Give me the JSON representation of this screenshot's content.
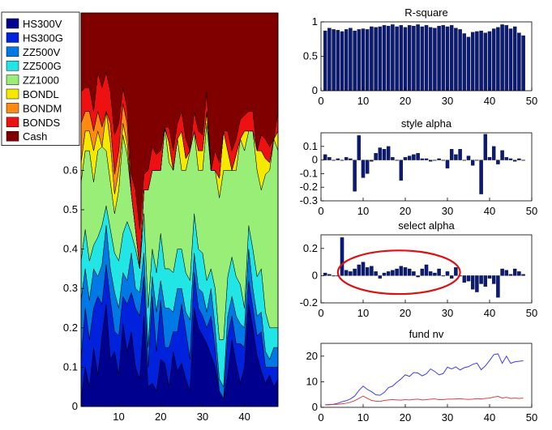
{
  "colors": {
    "HS300V": "#00008f",
    "HS300G": "#0022dd",
    "ZZ500V": "#0078e6",
    "ZZ500G": "#22e6e6",
    "ZZ1000": "#99ee77",
    "BONDL": "#f7e800",
    "BONDM": "#ff8a12",
    "BONDS": "#ee1111",
    "Cash": "#800000",
    "bar": "#0a1a78",
    "nv_line1": "#3b3bff",
    "nv_line2": "#e04040",
    "highlight": "#dd1111"
  },
  "chart_data": [
    {
      "type": "area",
      "stacked": true,
      "x": [
        1,
        2,
        3,
        4,
        5,
        6,
        7,
        8,
        9,
        10,
        11,
        12,
        13,
        14,
        15,
        16,
        17,
        18,
        19,
        20,
        21,
        22,
        23,
        24,
        25,
        26,
        27,
        28,
        29,
        30,
        31,
        32,
        33,
        34,
        35,
        36,
        37,
        38,
        39,
        40,
        41,
        42,
        43,
        44,
        45,
        46,
        47,
        48
      ],
      "xlim": [
        1,
        48
      ],
      "ylim": [
        0,
        1
      ],
      "xticks": [
        10,
        20,
        30,
        40
      ],
      "yticks": [
        0,
        0.1,
        0.2,
        0.3,
        0.4,
        0.5,
        0.6
      ],
      "legend": "top-left",
      "series": [
        {
          "name": "HS300V",
          "values": [
            0.02,
            0.1,
            0.05,
            0.15,
            0.08,
            0.18,
            0.26,
            0.12,
            0.14,
            0.08,
            0.21,
            0.14,
            0.19,
            0.1,
            0.07,
            0.23,
            0.05,
            0.06,
            0.04,
            0.12,
            0.11,
            0.05,
            0.14,
            0.09,
            0.11,
            0.07,
            0.04,
            0.25,
            0.2,
            0.18,
            0.16,
            0.13,
            0.1,
            0.04,
            0.02,
            0.08,
            0.17,
            0.11,
            0.06,
            0.1,
            0.26,
            0.2,
            0.13,
            0.09,
            0.06,
            0.08,
            0.05,
            0.07
          ]
        },
        {
          "name": "HS300G",
          "values": [
            0.1,
            0.15,
            0.12,
            0.1,
            0.2,
            0.08,
            0.1,
            0.15,
            0.05,
            0.1,
            0.07,
            0.12,
            0.1,
            0.15,
            0.16,
            0.1,
            0.05,
            0.22,
            0.1,
            0.15,
            0.04,
            0.1,
            0.05,
            0.1,
            0.15,
            0.12,
            0.08,
            0.09,
            0.05,
            0.05,
            0.04,
            0.1,
            0.05,
            0.0,
            0.0,
            0.1,
            0.06,
            0.05,
            0.1,
            0.05,
            0.06,
            0.05,
            0.05,
            0.1,
            0.04,
            0.02,
            0.05,
            0.03
          ]
        },
        {
          "name": "ZZ500V",
          "values": [
            0.15,
            0.1,
            0.1,
            0.1,
            0.05,
            0.1,
            0.1,
            0.08,
            0.1,
            0.07,
            0.06,
            0.06,
            0.1,
            0.05,
            0.06,
            0.06,
            0.05,
            0.05,
            0.1,
            0.05,
            0.1,
            0.1,
            0.05,
            0.11,
            0.04,
            0.05,
            0.1,
            0.05,
            0.05,
            0.06,
            0.04,
            0.07,
            0.05,
            0.03,
            0.03,
            0.05,
            0.05,
            0.07,
            0.05,
            0.05,
            0.08,
            0.05,
            0.05,
            0.05,
            0.04,
            0.02,
            0.05,
            0.05
          ]
        },
        {
          "name": "ZZ500G",
          "values": [
            0.1,
            0.1,
            0.1,
            0.06,
            0.1,
            0.1,
            0.05,
            0.1,
            0.1,
            0.12,
            0.1,
            0.15,
            0.05,
            0.1,
            0.06,
            0.1,
            0.1,
            0.07,
            0.1,
            0.12,
            0.1,
            0.1,
            0.1,
            0.1,
            0.1,
            0.1,
            0.1,
            0.1,
            0.1,
            0.1,
            0.08,
            0.05,
            0.1,
            0.1,
            0.12,
            0.1,
            0.1,
            0.1,
            0.1,
            0.05,
            0.06,
            0.1,
            0.1,
            0.11,
            0.1,
            0.08,
            0.05,
            0.05
          ]
        },
        {
          "name": "ZZ1000",
          "values": [
            0.2,
            0.2,
            0.28,
            0.16,
            0.22,
            0.2,
            0.14,
            0.12,
            0.1,
            0.18,
            0.25,
            0.17,
            0.1,
            0.05,
            0.0,
            0.06,
            0.3,
            0.2,
            0.26,
            0.16,
            0.36,
            0.27,
            0.26,
            0.28,
            0.2,
            0.26,
            0.33,
            0.21,
            0.2,
            0.21,
            0.4,
            0.25,
            0.3,
            0.36,
            0.43,
            0.27,
            0.22,
            0.27,
            0.37,
            0.4,
            0.24,
            0.3,
            0.27,
            0.2,
            0.35,
            0.4,
            0.48,
            0.45
          ]
        },
        {
          "name": "BONDL",
          "values": [
            0.05,
            0.05,
            0.05,
            0.08,
            0.05,
            0.0,
            0.1,
            0.1,
            0.05,
            0.05,
            0.03,
            0.03,
            0.0,
            0.0,
            0.0,
            0.0,
            0.0,
            0.0,
            0.0,
            0.0,
            0.0,
            0.05,
            0.0,
            0.0,
            0.1,
            0.03,
            0.0,
            0.0,
            0.05,
            0.05,
            0.03,
            0.0,
            0.0,
            0.05,
            0.1,
            0.05,
            0.0,
            0.04,
            0.0,
            0.05,
            0.0,
            0.0,
            0.05,
            0.1,
            0.04,
            0.02,
            0.0,
            0.05
          ]
        },
        {
          "name": "BONDM",
          "values": [
            0.1,
            0.05,
            0.05,
            0.05,
            0.05,
            0.05,
            0.0,
            0.05,
            0.05,
            0.05,
            0.05,
            0.05,
            0.0,
            0.0,
            0.0,
            0.0,
            0.0,
            0.0,
            0.0,
            0.0,
            0.0,
            0.0,
            0.0,
            0.0,
            0.0,
            0.0,
            0.0,
            0.0,
            0.0,
            0.0,
            0.0,
            0.0,
            0.0,
            0.0,
            0.0,
            0.0,
            0.0,
            0.0,
            0.0,
            0.0,
            0.0,
            0.0,
            0.0,
            0.0,
            0.0,
            0.0,
            0.0,
            0.0
          ]
        },
        {
          "name": "BONDS",
          "values": [
            0.08,
            0.06,
            0.06,
            0.05,
            0.1,
            0.1,
            0.1,
            0.08,
            0.1,
            0.07,
            0.04,
            0.04,
            0.05,
            0.1,
            0.1,
            0.04,
            0.05,
            0.06,
            0.04,
            0.05,
            0.0,
            0.04,
            0.05,
            0.04,
            0.05,
            0.05,
            0.0,
            0.05,
            0.05,
            0.04,
            0.05,
            0.0,
            0.05,
            0.04,
            0.0,
            0.05,
            0.05,
            0.04,
            0.05,
            0.04,
            0.05,
            0.05,
            0.0,
            0.04,
            0.05,
            0.04,
            0.0,
            0.05
          ]
        },
        {
          "name": "Cash",
          "values": [
            0.2,
            0.19,
            0.19,
            0.25,
            0.15,
            0.19,
            0.15,
            0.2,
            0.31,
            0.28,
            0.19,
            0.24,
            0.41,
            0.45,
            0.55,
            0.41,
            0.4,
            0.34,
            0.36,
            0.35,
            0.29,
            0.29,
            0.35,
            0.28,
            0.25,
            0.32,
            0.35,
            0.25,
            0.3,
            0.31,
            0.2,
            0.4,
            0.35,
            0.38,
            0.3,
            0.3,
            0.35,
            0.32,
            0.27,
            0.26,
            0.25,
            0.25,
            0.35,
            0.31,
            0.32,
            0.34,
            0.32,
            0.3
          ]
        }
      ]
    },
    {
      "type": "bar",
      "title": "R-square",
      "x": [
        1,
        2,
        3,
        4,
        5,
        6,
        7,
        8,
        9,
        10,
        11,
        12,
        13,
        14,
        15,
        16,
        17,
        18,
        19,
        20,
        21,
        22,
        23,
        24,
        25,
        26,
        27,
        28,
        29,
        30,
        31,
        32,
        33,
        34,
        35,
        36,
        37,
        38,
        39,
        40,
        41,
        42,
        43,
        44,
        45,
        46,
        47,
        48
      ],
      "values": [
        0.87,
        0.91,
        0.89,
        0.88,
        0.86,
        0.89,
        0.91,
        0.87,
        0.89,
        0.9,
        0.89,
        0.93,
        0.92,
        0.93,
        0.95,
        0.94,
        0.96,
        0.93,
        0.95,
        0.92,
        0.95,
        0.94,
        0.96,
        0.93,
        0.95,
        0.92,
        0.91,
        0.94,
        0.95,
        0.93,
        0.95,
        0.91,
        0.89,
        0.83,
        0.78,
        0.85,
        0.86,
        0.87,
        0.84,
        0.86,
        0.9,
        0.92,
        0.96,
        0.95,
        0.9,
        0.93,
        0.84,
        0.8
      ],
      "xlim": [
        0,
        50
      ],
      "ylim": [
        0,
        1
      ],
      "xticks": [
        0,
        10,
        20,
        30,
        40,
        50
      ],
      "yticks": [
        0,
        0.5,
        1
      ]
    },
    {
      "type": "bar",
      "title": "style alpha",
      "x": [
        1,
        2,
        3,
        4,
        5,
        6,
        7,
        8,
        9,
        10,
        11,
        12,
        13,
        14,
        15,
        16,
        17,
        18,
        19,
        20,
        21,
        22,
        23,
        24,
        25,
        26,
        27,
        28,
        29,
        30,
        31,
        32,
        33,
        34,
        35,
        36,
        37,
        38,
        39,
        40,
        41,
        42,
        43,
        44,
        45,
        46,
        47,
        48
      ],
      "values": [
        0.04,
        0.02,
        0.0,
        0.01,
        0.0,
        0.02,
        0.01,
        -0.23,
        0.18,
        -0.13,
        -0.1,
        -0.01,
        0.05,
        0.09,
        0.08,
        0.1,
        0.02,
        0.0,
        -0.15,
        0.02,
        0.03,
        0.04,
        0.05,
        0.01,
        0.01,
        -0.01,
        0.0,
        0.01,
        0.0,
        -0.06,
        0.08,
        0.04,
        0.08,
        0.0,
        0.03,
        -0.04,
        0.0,
        -0.25,
        0.19,
        0.02,
        0.1,
        -0.03,
        0.07,
        0.02,
        0.01,
        -0.01,
        0.01,
        0.0
      ],
      "xlim": [
        0,
        50
      ],
      "ylim": [
        -0.3,
        0.2
      ],
      "xticks": [
        0,
        10,
        20,
        30,
        40,
        50
      ],
      "yticks": [
        -0.3,
        -0.2,
        -0.1,
        0,
        0.1
      ]
    },
    {
      "type": "bar",
      "title": "select alpha",
      "x": [
        1,
        2,
        3,
        4,
        5,
        6,
        7,
        8,
        9,
        10,
        11,
        12,
        13,
        14,
        15,
        16,
        17,
        18,
        19,
        20,
        21,
        22,
        23,
        24,
        25,
        26,
        27,
        28,
        29,
        30,
        31,
        32,
        33,
        34,
        35,
        36,
        37,
        38,
        39,
        40,
        41,
        42,
        43,
        44,
        45,
        46,
        47,
        48
      ],
      "values": [
        0.02,
        0.01,
        0.0,
        0.0,
        0.28,
        0.04,
        0.03,
        0.05,
        0.08,
        0.1,
        0.06,
        0.07,
        0.03,
        -0.02,
        0.02,
        0.03,
        0.04,
        0.05,
        0.07,
        0.06,
        0.05,
        0.03,
        -0.01,
        0.05,
        0.08,
        0.03,
        0.02,
        0.05,
        0.0,
        0.03,
        -0.02,
        0.06,
        0.0,
        -0.05,
        -0.04,
        -0.1,
        -0.12,
        -0.06,
        -0.08,
        -0.02,
        -0.06,
        -0.16,
        0.05,
        0.04,
        0.01,
        0.05,
        0.03,
        0.01
      ],
      "xlim": [
        0,
        50
      ],
      "ylim": [
        -0.2,
        0.3
      ],
      "xticks": [
        0,
        10,
        20,
        30,
        40,
        50
      ],
      "yticks": [
        -0.2,
        0,
        0.2
      ],
      "annotation": {
        "type": "ellipse",
        "x_center": 18.5,
        "y_center": 0.025,
        "x_radius": 14.5,
        "y_radius": 0.16
      }
    },
    {
      "type": "line",
      "title": "fund nv",
      "x": [
        1,
        2,
        3,
        4,
        5,
        6,
        7,
        8,
        9,
        10,
        11,
        12,
        13,
        14,
        15,
        16,
        17,
        18,
        19,
        20,
        21,
        22,
        23,
        24,
        25,
        26,
        27,
        28,
        29,
        30,
        31,
        32,
        33,
        34,
        35,
        36,
        37,
        38,
        39,
        40,
        41,
        42,
        43,
        44,
        45,
        46,
        47,
        48
      ],
      "xlim": [
        0,
        50
      ],
      "ylim": [
        0,
        25
      ],
      "xticks": [
        0,
        10,
        20,
        30,
        40,
        50
      ],
      "yticks": [
        0,
        10,
        20
      ],
      "series": [
        {
          "values": [
            1,
            1.1,
            1.2,
            1.6,
            2.2,
            2.6,
            3.3,
            4.4,
            6.6,
            8.3,
            7.0,
            6.1,
            4.9,
            4.7,
            5.8,
            7.7,
            8.3,
            9.8,
            11.1,
            12.7,
            12.1,
            13.6,
            13.4,
            12.3,
            13.1,
            15.0,
            14.0,
            12.7,
            13.2,
            15.7,
            15.0,
            15.8,
            14.6,
            15.5,
            15.9,
            16.8,
            17.3,
            14.7,
            16.2,
            18.3,
            20.6,
            20.9,
            17.2,
            20.0,
            17.2,
            17.8,
            18.0,
            18.2
          ]
        },
        {
          "values": [
            1,
            1.0,
            1.1,
            1.2,
            1.4,
            1.6,
            2.0,
            2.6,
            3.5,
            4.4,
            3.5,
            2.7,
            2.4,
            2.3,
            2.7,
            2.9,
            3.0,
            2.9,
            2.8,
            3.0,
            2.9,
            3.1,
            3.2,
            2.9,
            3.0,
            3.2,
            3.3,
            3.0,
            3.0,
            3.2,
            3.2,
            3.3,
            3.4,
            3.2,
            3.1,
            3.2,
            3.4,
            3.3,
            3.5,
            3.6,
            4.0,
            4.3,
            3.6,
            3.9,
            3.5,
            3.6,
            3.5,
            3.6
          ]
        }
      ]
    }
  ]
}
